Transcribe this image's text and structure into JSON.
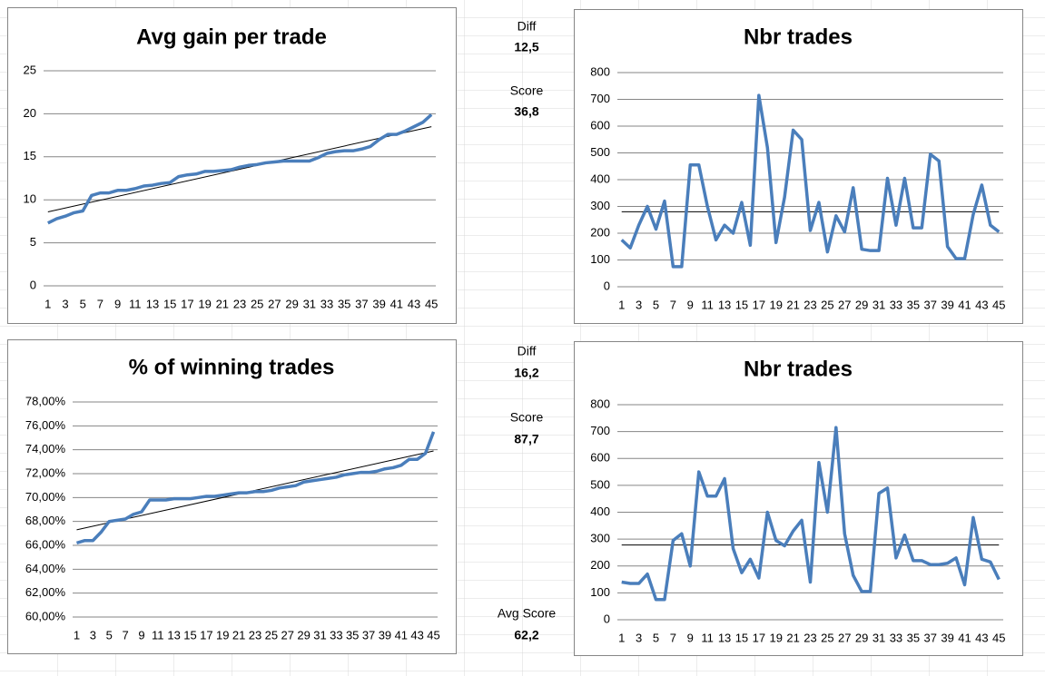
{
  "chart_data": [
    {
      "type": "line",
      "title": "Avg gain per trade",
      "color": "#4a7ebb",
      "trendline_color": "#000000",
      "categories": [
        1,
        null,
        3,
        null,
        5,
        null,
        7,
        null,
        9,
        null,
        11,
        null,
        13,
        null,
        15,
        null,
        17,
        null,
        19,
        null,
        21,
        null,
        23,
        null,
        25,
        null,
        27,
        null,
        29,
        null,
        31,
        null,
        33,
        null,
        35,
        null,
        37,
        null,
        39,
        null,
        41,
        null,
        43,
        null,
        45
      ],
      "values": [
        7.3,
        7.8,
        8.1,
        8.5,
        8.7,
        10.5,
        10.8,
        10.8,
        11.1,
        11.1,
        11.3,
        11.6,
        11.7,
        11.9,
        12.0,
        12.7,
        12.9,
        13.0,
        13.3,
        13.3,
        13.4,
        13.5,
        13.8,
        14.0,
        14.1,
        14.3,
        14.4,
        14.5,
        14.5,
        14.5,
        14.5,
        14.9,
        15.4,
        15.6,
        15.7,
        15.7,
        15.9,
        16.2,
        17.0,
        17.6,
        17.6,
        18.0,
        18.5,
        19.0,
        19.9
      ],
      "trendline": [
        8.6,
        18.5
      ],
      "ylim": [
        0,
        25
      ],
      "yticks": [
        0,
        5,
        10,
        15,
        20,
        25
      ],
      "grid": true
    },
    {
      "type": "line",
      "title": "Nbr trades",
      "color": "#4a7ebb",
      "trendline_color": "#000000",
      "categories": [
        1,
        null,
        3,
        null,
        5,
        null,
        7,
        null,
        9,
        null,
        11,
        null,
        13,
        null,
        15,
        null,
        17,
        null,
        19,
        null,
        21,
        null,
        23,
        null,
        25,
        null,
        27,
        null,
        29,
        null,
        31,
        null,
        33,
        null,
        35,
        null,
        37,
        null,
        39,
        null,
        41,
        null,
        43,
        null,
        45
      ],
      "values": [
        175,
        145,
        230,
        300,
        215,
        320,
        75,
        75,
        455,
        455,
        300,
        175,
        230,
        200,
        315,
        155,
        715,
        520,
        165,
        335,
        585,
        550,
        210,
        315,
        130,
        265,
        205,
        370,
        140,
        135,
        135,
        405,
        230,
        405,
        220,
        220,
        495,
        470,
        150,
        105,
        105,
        270,
        380,
        230,
        205
      ],
      "trendline": [
        280,
        280
      ],
      "ylim": [
        0,
        800
      ],
      "yticks": [
        0,
        100,
        200,
        300,
        400,
        500,
        600,
        700,
        800
      ],
      "grid": true
    },
    {
      "type": "line",
      "title": "% of winning trades",
      "color": "#4a7ebb",
      "trendline_color": "#000000",
      "categories": [
        1,
        null,
        3,
        null,
        5,
        null,
        7,
        null,
        9,
        null,
        11,
        null,
        13,
        null,
        15,
        null,
        17,
        null,
        19,
        null,
        21,
        null,
        23,
        null,
        25,
        null,
        27,
        null,
        29,
        null,
        31,
        null,
        33,
        null,
        35,
        null,
        37,
        null,
        39,
        null,
        41,
        null,
        43,
        null,
        45
      ],
      "values": [
        66.2,
        66.4,
        66.4,
        67.1,
        68.0,
        68.1,
        68.2,
        68.6,
        68.8,
        69.8,
        69.8,
        69.8,
        69.9,
        69.9,
        69.9,
        70.0,
        70.1,
        70.1,
        70.2,
        70.3,
        70.4,
        70.4,
        70.5,
        70.5,
        70.6,
        70.8,
        70.9,
        71.0,
        71.3,
        71.4,
        71.5,
        71.6,
        71.7,
        71.9,
        72.0,
        72.1,
        72.1,
        72.2,
        72.4,
        72.5,
        72.7,
        73.2,
        73.2,
        73.7,
        75.5
      ],
      "trendline": [
        67.3,
        73.9
      ],
      "ylim": [
        60,
        78
      ],
      "yticks": [
        {
          "value": 60,
          "label": "60,00%"
        },
        {
          "value": 62,
          "label": "62,00%"
        },
        {
          "value": 64,
          "label": "64,00%"
        },
        {
          "value": 66,
          "label": "66,00%"
        },
        {
          "value": 68,
          "label": "68,00%"
        },
        {
          "value": 70,
          "label": "70,00%"
        },
        {
          "value": 72,
          "label": "72,00%"
        },
        {
          "value": 74,
          "label": "74,00%"
        },
        {
          "value": 76,
          "label": "76,00%"
        },
        {
          "value": 78,
          "label": "78,00%"
        }
      ],
      "grid": true
    },
    {
      "type": "line",
      "title": "Nbr trades",
      "color": "#4a7ebb",
      "trendline_color": "#000000",
      "categories": [
        1,
        null,
        3,
        null,
        5,
        null,
        7,
        null,
        9,
        null,
        11,
        null,
        13,
        null,
        15,
        null,
        17,
        null,
        19,
        null,
        21,
        null,
        23,
        null,
        25,
        null,
        27,
        null,
        29,
        null,
        31,
        null,
        33,
        null,
        35,
        null,
        37,
        null,
        39,
        null,
        41,
        null,
        43,
        null,
        45
      ],
      "values": [
        140,
        135,
        135,
        170,
        75,
        75,
        295,
        320,
        200,
        550,
        460,
        460,
        525,
        265,
        175,
        225,
        155,
        400,
        295,
        275,
        330,
        370,
        140,
        585,
        400,
        715,
        320,
        165,
        105,
        105,
        470,
        490,
        230,
        315,
        220,
        220,
        205,
        205,
        210,
        230,
        130,
        380,
        225,
        215,
        150
      ],
      "trendline": [
        278,
        278
      ],
      "ylim": [
        0,
        800
      ],
      "yticks": [
        0,
        100,
        200,
        300,
        400,
        500,
        600,
        700,
        800
      ],
      "grid": true
    }
  ],
  "cells": [
    {
      "label": "Diff",
      "value": "12,5"
    },
    {
      "label": "Score",
      "value": "36,8"
    },
    {
      "label": "Diff",
      "value": "16,2"
    },
    {
      "label": "Score",
      "value": "87,7"
    },
    {
      "label": "Avg Score",
      "value": "62,2"
    }
  ]
}
